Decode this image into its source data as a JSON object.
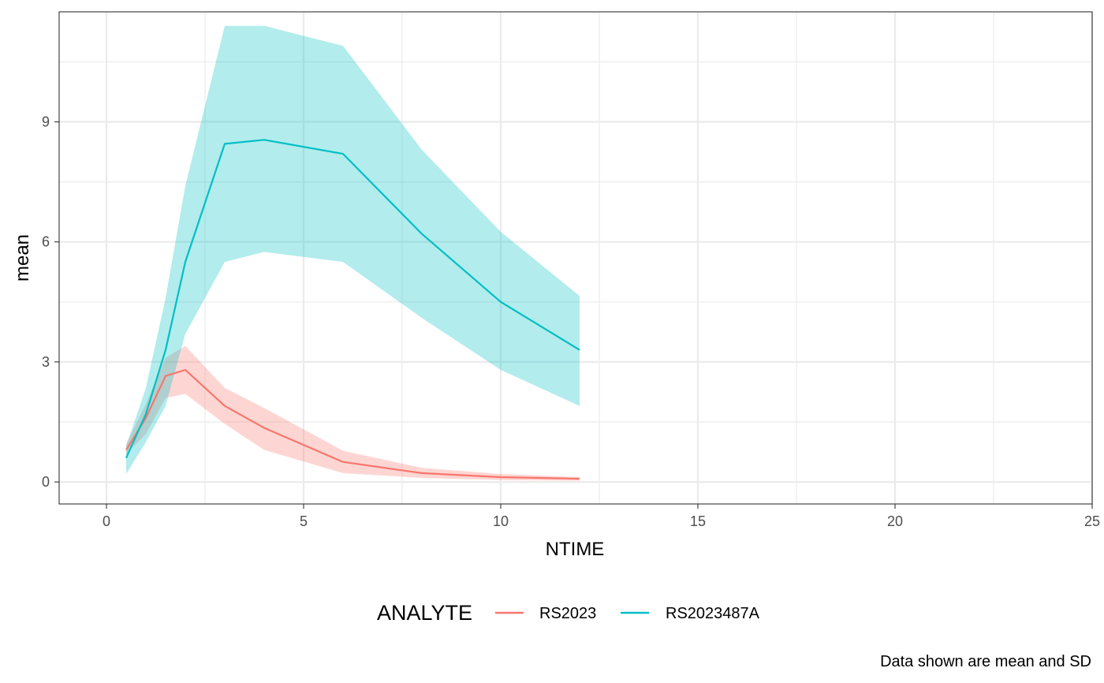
{
  "chart_data": {
    "type": "area",
    "title": "",
    "xlabel": "NTIME",
    "ylabel": "mean",
    "caption": "Data shown are mean and SD",
    "xlim": [
      -1.2,
      25
    ],
    "ylim": [
      -0.55,
      11.75
    ],
    "x_ticks": [
      0,
      5,
      10,
      15,
      20,
      25
    ],
    "y_ticks": [
      0,
      3,
      6,
      9
    ],
    "x_tick_labels": [
      "0",
      "5",
      "10",
      "15",
      "20",
      "25"
    ],
    "y_tick_labels": [
      "0",
      "3",
      "6",
      "9"
    ],
    "grid": true,
    "legend": {
      "title": "ANALYTE",
      "position": "bottom"
    },
    "series": [
      {
        "name": "RS2023",
        "color": "#F8766D",
        "x": [
          0.5,
          1,
          1.5,
          2,
          3,
          4,
          6,
          8,
          10,
          12
        ],
        "mean": [
          0.8,
          1.6,
          2.65,
          2.8,
          1.9,
          1.35,
          0.5,
          0.22,
          0.12,
          0.08
        ],
        "lower": [
          0.7,
          1.2,
          2.1,
          2.2,
          1.45,
          0.8,
          0.22,
          0.1,
          0.05,
          0.03
        ],
        "upper": [
          0.95,
          1.95,
          3.1,
          3.4,
          2.35,
          1.85,
          0.78,
          0.35,
          0.2,
          0.12
        ]
      },
      {
        "name": "RS2023487A",
        "color": "#00BFC4",
        "x": [
          0.5,
          1,
          1.5,
          2,
          3,
          4,
          6,
          8,
          10,
          12
        ],
        "mean": [
          0.6,
          1.7,
          3.3,
          5.5,
          8.45,
          8.55,
          8.2,
          6.2,
          4.5,
          3.3
        ],
        "lower": [
          0.2,
          1.0,
          1.9,
          3.7,
          5.5,
          5.75,
          5.5,
          4.1,
          2.8,
          1.9
        ],
        "upper": [
          0.9,
          2.35,
          4.6,
          7.4,
          11.4,
          11.4,
          10.9,
          8.3,
          6.25,
          4.65
        ]
      }
    ]
  }
}
